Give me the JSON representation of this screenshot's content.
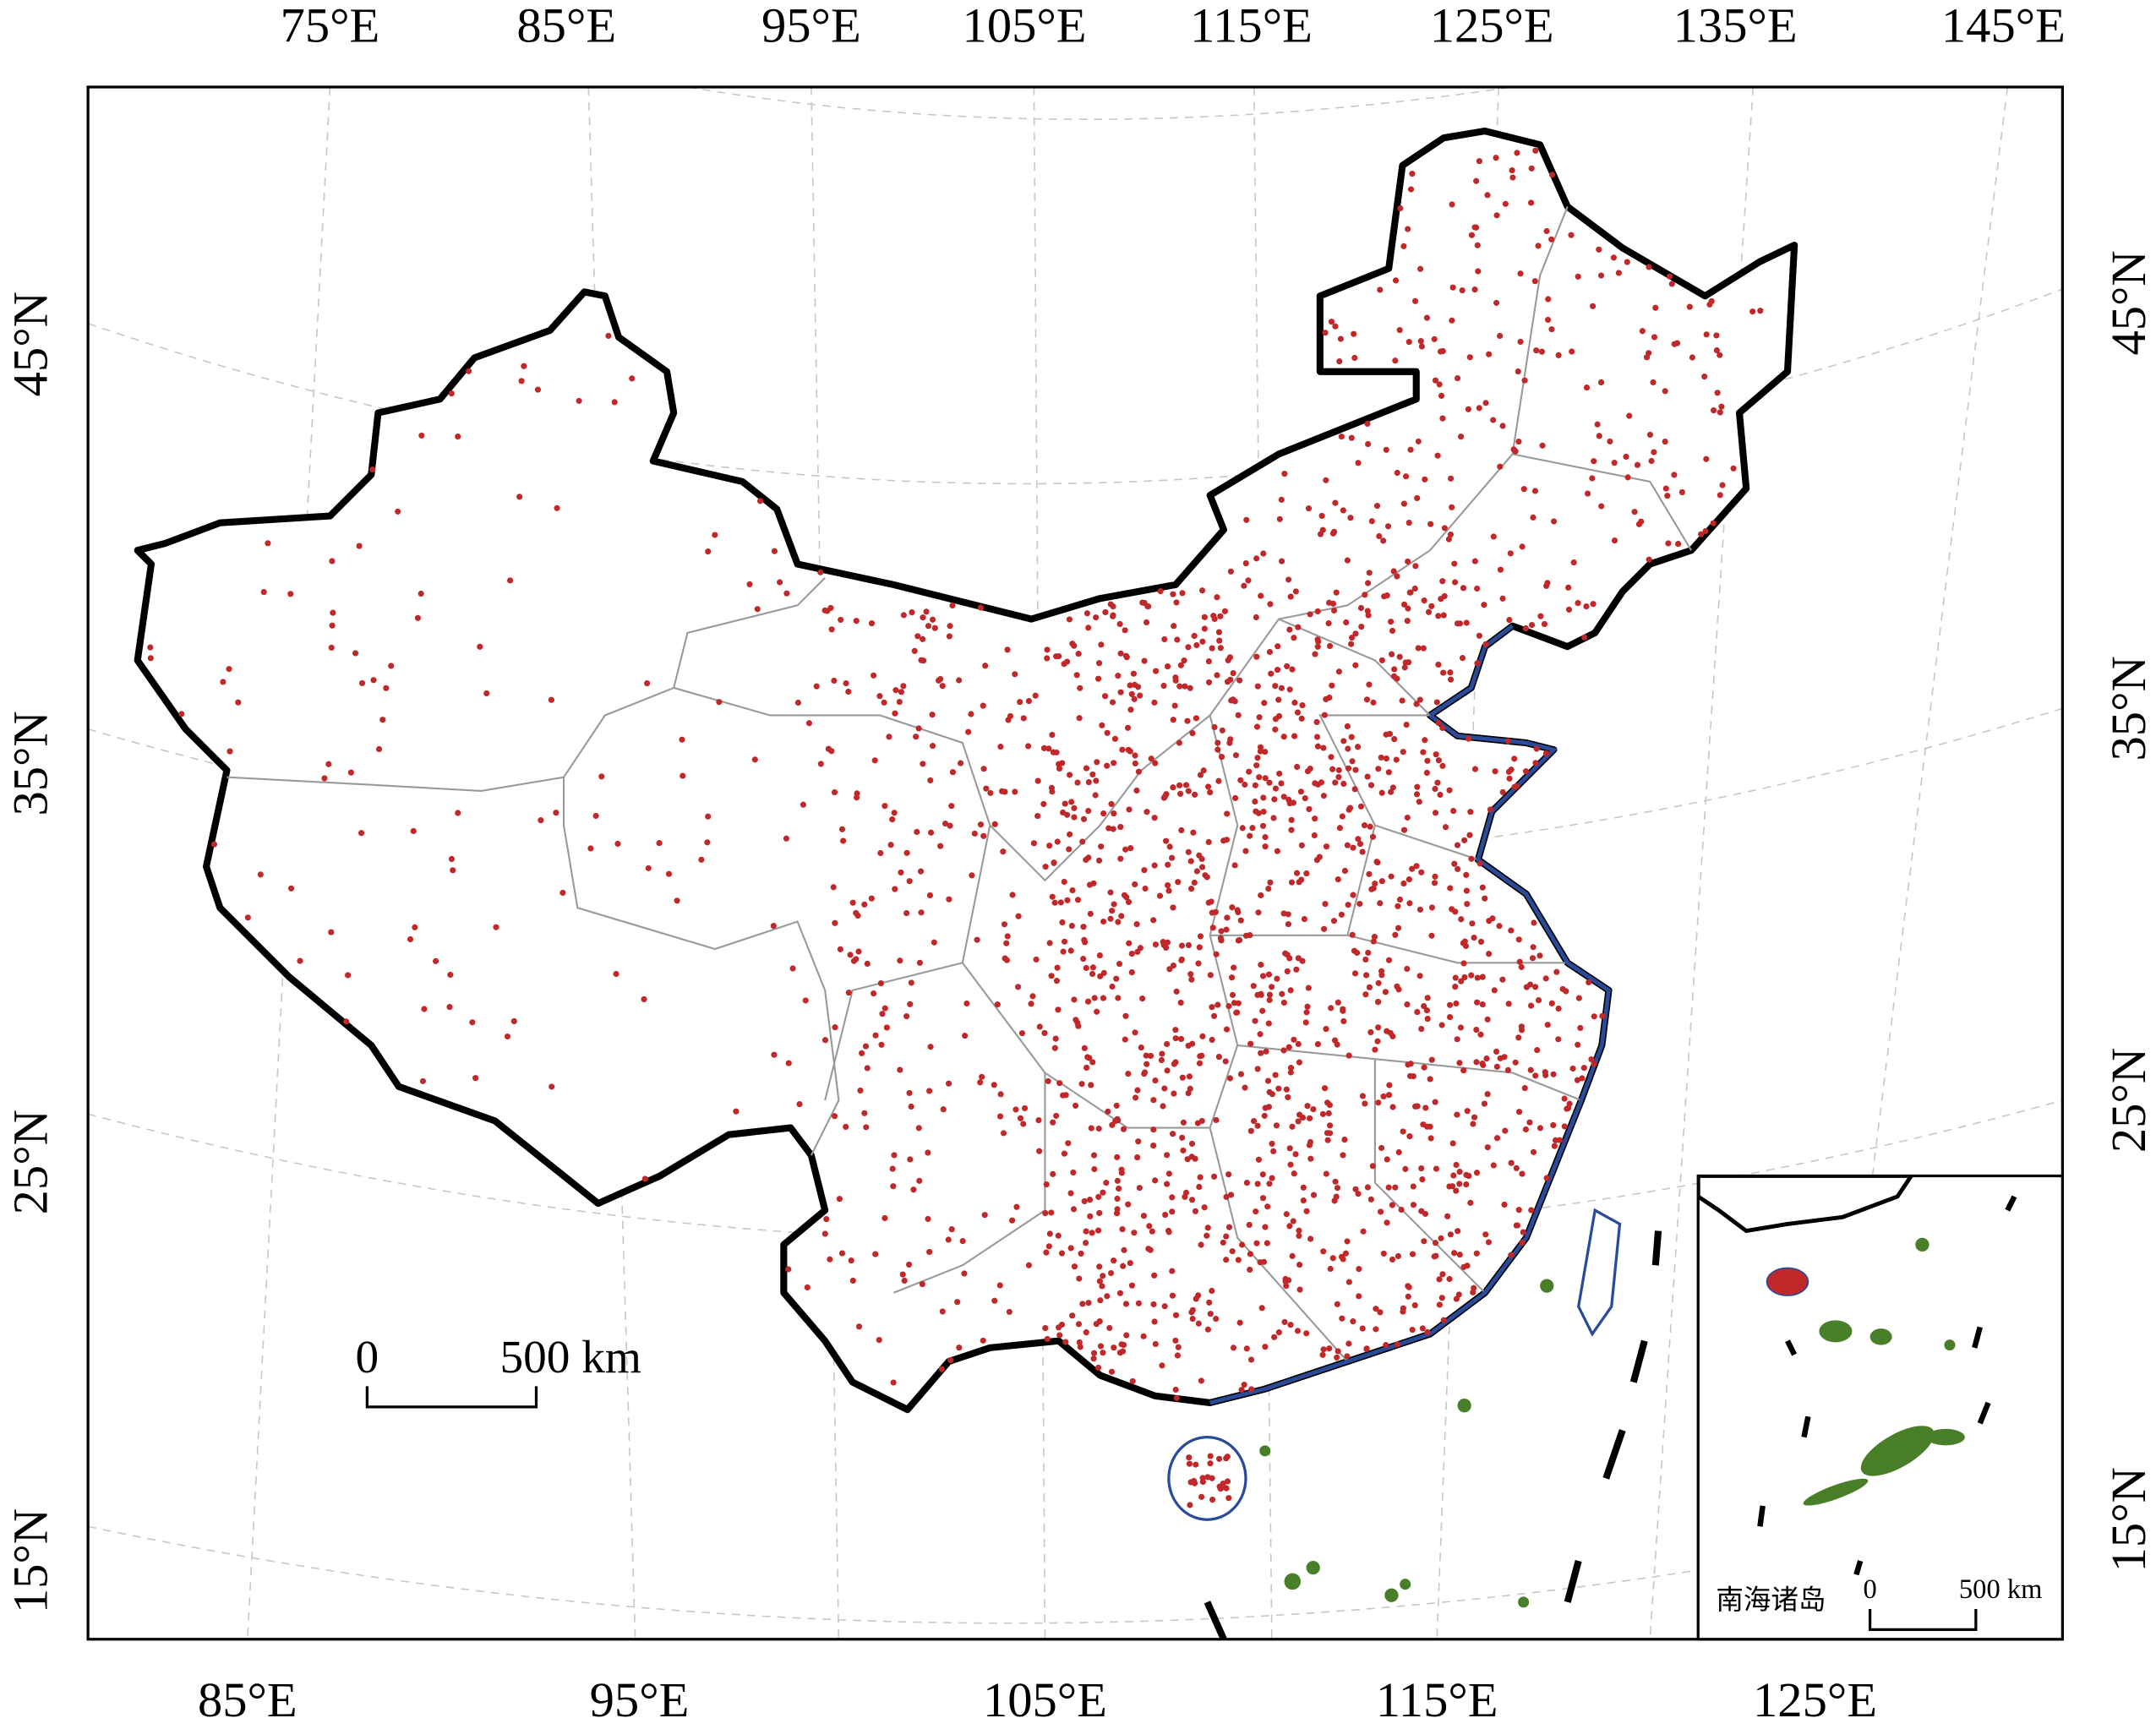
{
  "map": {
    "top_lon_labels": [
      "75°E",
      "85°E",
      "95°E",
      "105°E",
      "115°E",
      "125°E",
      "135°E",
      "145°E"
    ],
    "bottom_lon_labels": [
      "85°E",
      "95°E",
      "105°E",
      "115°E",
      "125°E"
    ],
    "left_lat_labels": [
      "45°N",
      "35°N",
      "25°N",
      "15°N"
    ],
    "right_lat_labels": [
      "45°N",
      "35°N",
      "25°N",
      "15°N"
    ],
    "scale_bar": {
      "start": "0",
      "end": "500 km"
    },
    "inset": {
      "title": "南海诸岛",
      "scale_bar": {
        "start": "0",
        "end": "500 km"
      }
    }
  }
}
